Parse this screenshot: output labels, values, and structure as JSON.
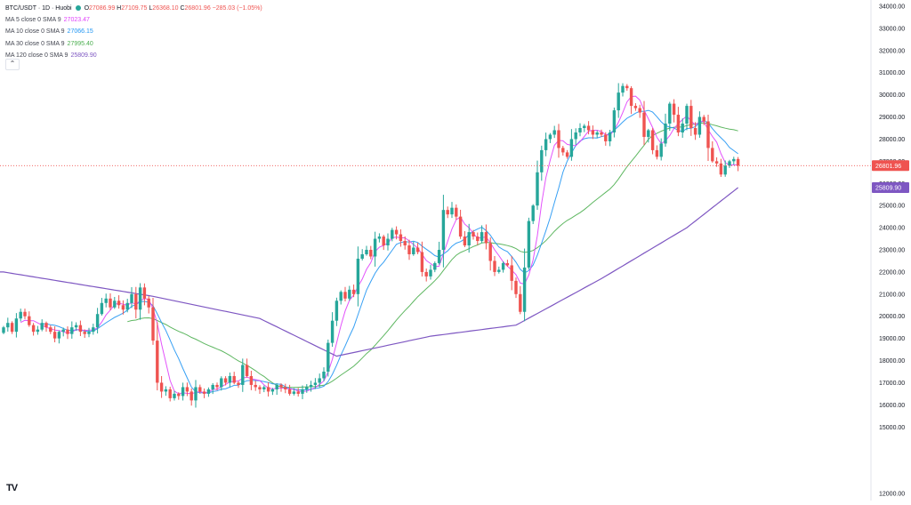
{
  "legend": {
    "symbol": "BTC/USDT · 1D · Huobi",
    "open_label": "O",
    "open": "27086.99",
    "high_label": "H",
    "high": "27109.75",
    "low_label": "L",
    "low": "26368.10",
    "close_label": "C",
    "close": "26801.96",
    "change": "−285.03 (−1.05%)",
    "ma5_label": "MA 5 close 0 SMA 9",
    "ma5_value": "27023.47",
    "ma10_label": "MA 10 close 0 SMA 9",
    "ma10_value": "27066.15",
    "ma30_label": "MA 30 close 0 SMA 9",
    "ma30_value": "27995.40",
    "ma120_label": "MA 120 close 0 SMA 9",
    "ma120_value": "25809.90",
    "collapse_icon": "chevron-up-icon"
  },
  "branding": {
    "logo_text": "TV"
  },
  "colors": {
    "up": "#26a69a",
    "down": "#ef5350",
    "ma5": "#e040fb",
    "ma10": "#2196f3",
    "ma30": "#4caf50",
    "ma120": "#7e57c2",
    "price_line": "#ef5350",
    "price_tag": "#ef5350",
    "ma120_tag": "#7e57c2"
  },
  "chart_data": {
    "type": "candlestick",
    "ylim": [
      12000,
      34000
    ],
    "y_ticks": [
      12000,
      15000,
      16000,
      17000,
      18000,
      19000,
      20000,
      21000,
      22000,
      23000,
      24000,
      25000,
      26000,
      27000,
      28000,
      29000,
      30000,
      31000,
      32000,
      33000,
      34000
    ],
    "y_tick_labels": [
      "12000.00",
      "15000.00",
      "16000.00",
      "17000.00",
      "18000.00",
      "19000.00",
      "20000.00",
      "21000.00",
      "22000.00",
      "23000.00",
      "24000.00",
      "25000.00",
      "26000.00",
      "27000.00",
      "28000.00",
      "29000.00",
      "30000.00",
      "31000.00",
      "32000.00",
      "33000.00",
      "34000.00"
    ],
    "grid": false,
    "last_price": 26801.96,
    "last_price_label": "26801.96",
    "ma120_last": 25809.9,
    "ma120_last_label": "25809.90",
    "closes": [
      19500,
      19700,
      19300,
      19900,
      20200,
      20000,
      19600,
      19300,
      19400,
      19700,
      19500,
      19300,
      19000,
      19300,
      19400,
      19200,
      19500,
      19600,
      19300,
      19200,
      19300,
      19500,
      20100,
      20600,
      20800,
      20400,
      20700,
      20500,
      20300,
      20600,
      21000,
      20300,
      21300,
      20800,
      20400,
      18900,
      17000,
      16600,
      16700,
      16300,
      16500,
      16400,
      16800,
      16600,
      16200,
      16800,
      16600,
      16500,
      16700,
      16900,
      16800,
      17200,
      17000,
      17300,
      17000,
      16900,
      17800,
      17300,
      16900,
      16800,
      16700,
      16800,
      16600,
      16700,
      16900,
      16800,
      16700,
      16500,
      16600,
      16500,
      16700,
      16800,
      16900,
      17000,
      17200,
      17500,
      18800,
      19800,
      20700,
      21100,
      20800,
      21200,
      21000,
      22600,
      22800,
      23000,
      22700,
      23500,
      23600,
      23200,
      23500,
      23900,
      23700,
      23400,
      23200,
      22800,
      23100,
      22900,
      22000,
      21800,
      22100,
      22400,
      23000,
      24800,
      24600,
      24900,
      24500,
      23600,
      23200,
      23800,
      23600,
      23400,
      23800,
      23300,
      22500,
      22000,
      22100,
      22400,
      22300,
      21600,
      21000,
      20200,
      22200,
      24300,
      25000,
      26500,
      27500,
      28000,
      28200,
      28400,
      27600,
      27400,
      27200,
      28000,
      28300,
      28500,
      28600,
      28400,
      28200,
      28300,
      28200,
      27900,
      28300,
      29300,
      30100,
      30400,
      30300,
      29500,
      29400,
      29200,
      28100,
      28400,
      27500,
      27200,
      27800,
      28700,
      29600,
      29100,
      28300,
      28700,
      29500,
      28500,
      28200,
      29000,
      28800,
      27600,
      27000,
      26900,
      26400,
      26800,
      27000,
      27100,
      26802
    ]
  }
}
